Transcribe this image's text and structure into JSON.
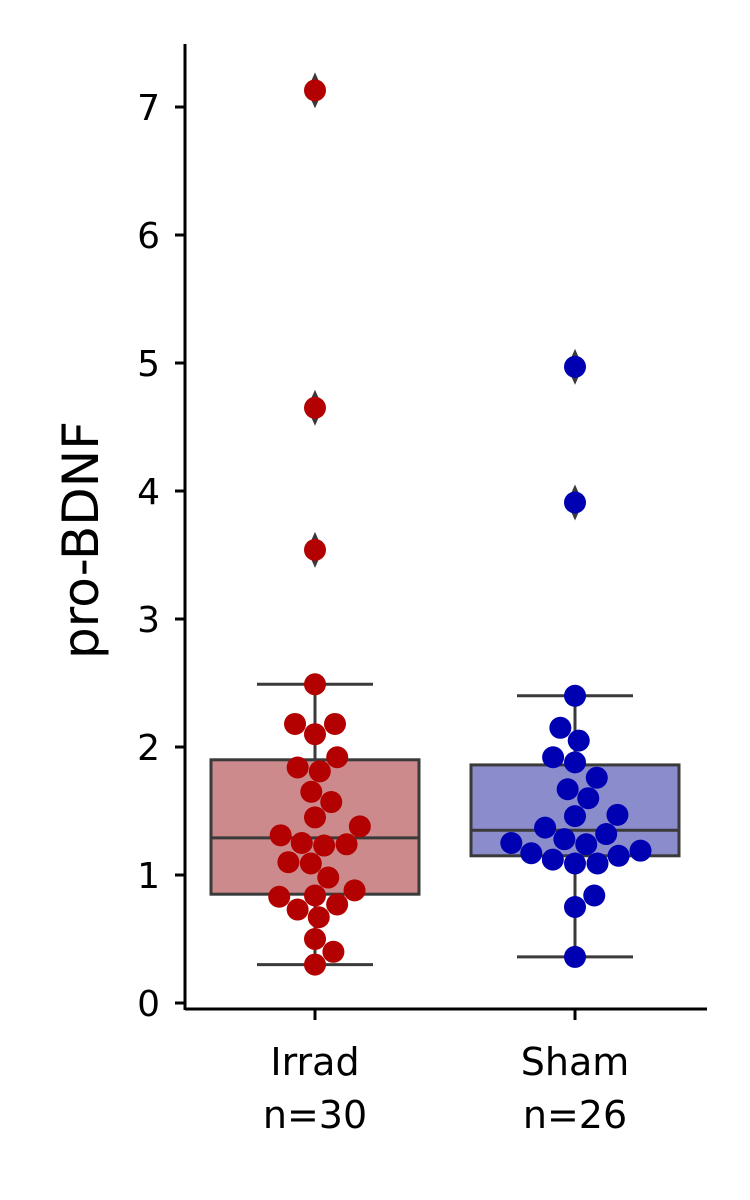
{
  "chart_data": {
    "type": "box",
    "ylabel": "pro-BDNF",
    "ylim": [
      -0.05,
      7.5
    ],
    "yticks": [
      0,
      1,
      2,
      3,
      4,
      5,
      6,
      7
    ],
    "grid": false,
    "categories": [
      {
        "name": "Irrad",
        "n_label": "n=30",
        "box_fill": "#cd8a8c",
        "point_color": "#b30000",
        "stats": {
          "whisker_low": 0.3,
          "q1": 0.85,
          "median": 1.29,
          "q3": 1.9,
          "whisker_high": 2.49
        },
        "outliers": [
          3.54,
          4.65,
          7.13
        ],
        "points": [
          2.49,
          2.18,
          2.18,
          2.1,
          1.92,
          1.84,
          1.81,
          1.65,
          1.57,
          1.45,
          1.38,
          1.31,
          1.25,
          1.24,
          1.23,
          1.1,
          1.09,
          0.98,
          0.88,
          0.84,
          0.83,
          0.77,
          0.73,
          0.67,
          0.5,
          0.4,
          0.3,
          3.54,
          4.65,
          7.13
        ]
      },
      {
        "name": "Sham",
        "n_label": "n=26",
        "box_fill": "#8b8ccc",
        "point_color": "#0000b3",
        "stats": {
          "whisker_low": 0.36,
          "q1": 1.15,
          "median": 1.35,
          "q3": 1.86,
          "whisker_high": 2.4
        },
        "outliers": [
          3.91,
          4.97
        ],
        "points": [
          2.4,
          2.15,
          2.05,
          1.92,
          1.88,
          1.76,
          1.67,
          1.6,
          1.47,
          1.46,
          1.37,
          1.32,
          1.28,
          1.25,
          1.24,
          1.19,
          1.17,
          1.15,
          1.12,
          1.09,
          1.09,
          0.84,
          0.75,
          0.36,
          3.91,
          4.97
        ]
      }
    ]
  }
}
